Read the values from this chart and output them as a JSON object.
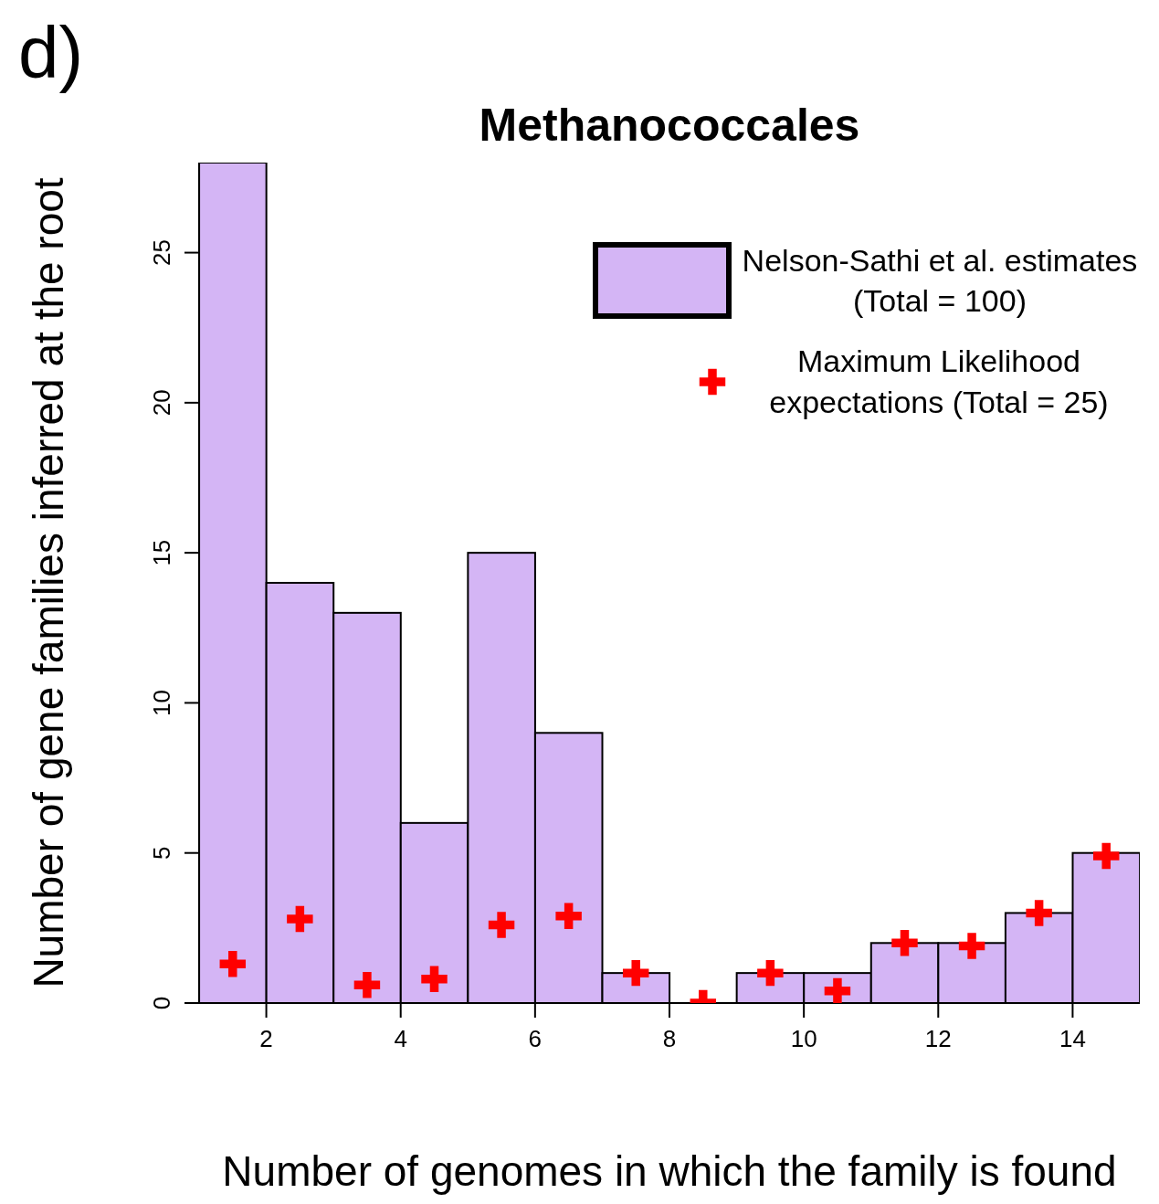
{
  "chart_data": {
    "type": "histogram",
    "title": "Methanococcales",
    "xlabel": "Number of genomes in which the family is found",
    "ylabel": "Number of gene families inferred at the root",
    "annotations": [
      "d)"
    ],
    "xlim": [
      1,
      15
    ],
    "xticks": [
      2,
      4,
      6,
      8,
      10,
      12,
      14
    ],
    "ylim": [
      0,
      28
    ],
    "yticks": [
      0,
      5,
      10,
      15,
      20,
      25
    ],
    "legend": "top right",
    "series": [
      {
        "name": "Nelson-Sathi et al. estimates (Total = 100)",
        "color": "#d4b5f5",
        "bins": [
          1,
          2,
          3,
          4,
          5,
          6,
          7,
          8,
          9,
          10,
          11,
          12,
          13,
          14,
          15
        ],
        "values": [
          28,
          14,
          13,
          6,
          15,
          9,
          1,
          0,
          1,
          1,
          2,
          2,
          3,
          5
        ]
      },
      {
        "type": "scatter",
        "name": "Maximum Likelihood expectations (Total = 25)",
        "color": "#ff0000",
        "marker": "cross",
        "x": [
          1.5,
          2.5,
          3.5,
          4.5,
          5.5,
          6.5,
          7.5,
          8.5,
          9.5,
          10.5,
          11.5,
          12.5,
          13.5,
          14.5
        ],
        "values": [
          1.3,
          2.8,
          0.6,
          0.8,
          2.6,
          2.9,
          1.0,
          0.0,
          1.0,
          0.4,
          2.0,
          1.9,
          3.0,
          4.9
        ]
      }
    ]
  }
}
